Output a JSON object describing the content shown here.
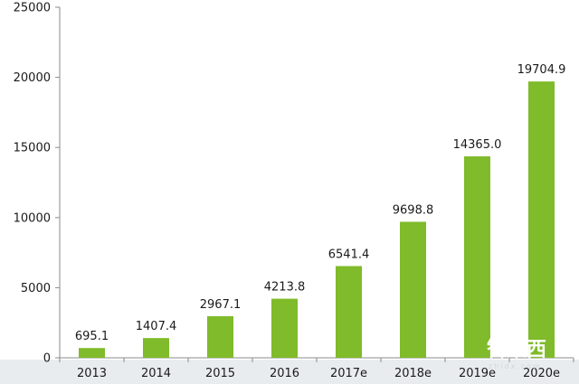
{
  "chart_data": {
    "type": "bar",
    "categories": [
      "2013",
      "2014",
      "2015",
      "2016",
      "2017e",
      "2018e",
      "2019e",
      "2020e"
    ],
    "values": [
      695.1,
      1407.4,
      2967.1,
      4213.8,
      6541.4,
      9698.8,
      14365.0,
      19704.9
    ],
    "value_labels": [
      "695.1",
      "1407.4",
      "2967.1",
      "4213.8",
      "6541.4",
      "9698.8",
      "14365.0",
      "19704.9"
    ],
    "title": "",
    "xlabel": "",
    "ylabel": "",
    "ylim": [
      0,
      25000
    ],
    "yticks": [
      0,
      5000,
      10000,
      15000,
      20000,
      25000
    ],
    "grid": false,
    "legend": "none",
    "bar_color": "#7fbb2a"
  },
  "watermark": {
    "text": "智東西",
    "subtext": "zhidx.com"
  }
}
